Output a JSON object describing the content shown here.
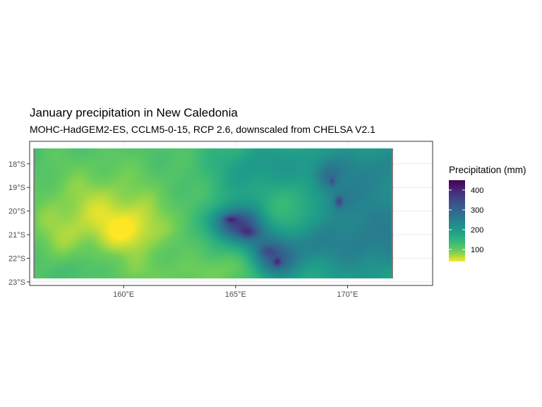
{
  "chart_data": {
    "type": "heatmap",
    "title": "January precipitation in New Caledonia",
    "subtitle": "MOHC-HadGEM2-ES, CCLM5-0-15, RCP 2.6, downscaled from CHELSA V2.1",
    "xlabel": "",
    "ylabel": "",
    "xlim": [
      155.8,
      173.8
    ],
    "ylim": [
      -23.15,
      -17.05
    ],
    "data_extent": {
      "lon": [
        156.0,
        172.0
      ],
      "lat": [
        -22.85,
        -17.35
      ]
    },
    "x_ticks": [
      {
        "value": 160,
        "label": "160°E"
      },
      {
        "value": 165,
        "label": "165°E"
      },
      {
        "value": 170,
        "label": "170°E"
      }
    ],
    "y_ticks": [
      {
        "value": -18,
        "label": "18°S"
      },
      {
        "value": -19,
        "label": "19°S"
      },
      {
        "value": -20,
        "label": "20°S"
      },
      {
        "value": -21,
        "label": "21°S"
      },
      {
        "value": -22,
        "label": "22°S"
      },
      {
        "value": -23,
        "label": "23°S"
      }
    ],
    "legend": {
      "title": "Precipitation (mm)",
      "placement": "right",
      "range": [
        40,
        450
      ],
      "breaks": [
        100,
        200,
        300,
        400
      ],
      "palette": "viridis (reversed)"
    },
    "field": {
      "base_mm": 120,
      "features": [
        {
          "lon": 159.0,
          "lat": -19.6,
          "sx": 2.0,
          "sy": 1.2,
          "mm": -45
        },
        {
          "lon": 160.3,
          "lat": -20.9,
          "sx": 1.2,
          "sy": 0.8,
          "mm": -60
        },
        {
          "lon": 157.2,
          "lat": -21.0,
          "sx": 1.0,
          "sy": 0.9,
          "mm": -30
        },
        {
          "lon": 166.0,
          "lat": -22.3,
          "sx": 1.4,
          "sy": 0.5,
          "mm": -45
        },
        {
          "lon": 162.0,
          "lat": -22.7,
          "sx": 2.5,
          "sy": 0.5,
          "mm": -25
        },
        {
          "lon": 158.0,
          "lat": -22.5,
          "sx": 0.7,
          "sy": 0.4,
          "mm": 25
        },
        {
          "lon": 166.0,
          "lat": -18.0,
          "sx": 1.5,
          "sy": 0.8,
          "mm": 55
        },
        {
          "lon": 165.3,
          "lat": -20.0,
          "sx": 1.0,
          "sy": 1.2,
          "mm": 40
        },
        {
          "lon": 167.6,
          "lat": -19.8,
          "sx": 1.0,
          "sy": 1.0,
          "mm": -30
        },
        {
          "lon": 171.2,
          "lat": -21.2,
          "sx": 2.8,
          "sy": 1.8,
          "mm": 135
        },
        {
          "lon": 170.8,
          "lat": -18.0,
          "sx": 2.6,
          "sy": 1.0,
          "mm": 90
        },
        {
          "lon": 169.6,
          "lat": -19.5,
          "sx": 0.5,
          "sy": 0.45,
          "mm": 45
        },
        {
          "lon": 171.8,
          "lat": -22.6,
          "sx": 1.0,
          "sy": 0.5,
          "mm": -20
        },
        {
          "lon": 164.9,
          "lat": -20.5,
          "sx": 0.7,
          "sy": 0.45,
          "mm": 170
        },
        {
          "lon": 165.7,
          "lat": -21.0,
          "sx": 0.6,
          "sy": 0.5,
          "mm": 80
        },
        {
          "lon": 166.7,
          "lat": -22.1,
          "sx": 0.7,
          "sy": 0.6,
          "mm": 190
        },
        {
          "lon": 169.1,
          "lat": -18.5,
          "sx": 0.4,
          "sy": 0.4,
          "mm": 60
        },
        {
          "lon": 168.2,
          "lat": -21.4,
          "sx": 0.8,
          "sy": 0.6,
          "mm": 50
        }
      ],
      "islands": [
        {
          "lon": 164.75,
          "lat": -20.35,
          "sx": 0.2,
          "sy": 0.1,
          "mm": 80
        },
        {
          "lon": 165.55,
          "lat": -20.9,
          "sx": 0.25,
          "sy": 0.15,
          "mm": 70
        },
        {
          "lon": 166.4,
          "lat": -21.7,
          "sx": 0.25,
          "sy": 0.15,
          "mm": 50
        },
        {
          "lon": 166.85,
          "lat": -22.15,
          "sx": 0.12,
          "sy": 0.12,
          "mm": 90
        },
        {
          "lon": 169.6,
          "lat": -19.6,
          "sx": 0.12,
          "sy": 0.15,
          "mm": 100
        },
        {
          "lon": 169.3,
          "lat": -18.75,
          "sx": 0.08,
          "sy": 0.1,
          "mm": 70
        }
      ]
    }
  }
}
